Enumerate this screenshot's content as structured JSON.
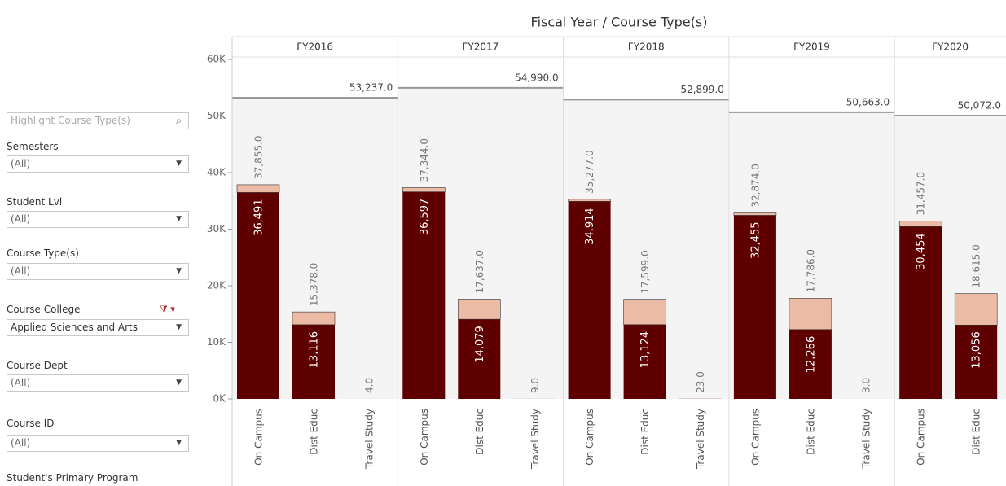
{
  "sidebar": {
    "search_placeholder": "Highlight Course Type(s)",
    "filters": [
      {
        "label": "Semesters",
        "value": "(All)"
      },
      {
        "label": "Student Lvl",
        "value": "(All)"
      },
      {
        "label": "Course Type(s)",
        "value": "(All)"
      },
      {
        "label": "Course College",
        "value": "Applied Sciences and Arts"
      },
      {
        "label": "Course Dept",
        "value": "(All)"
      },
      {
        "label": "Course ID",
        "value": "(All)"
      },
      {
        "label": "Student's Primary Program"
      }
    ]
  },
  "chart_data": {
    "type": "bar",
    "title": "Fiscal Year / Course Type(s)",
    "ylim": [
      0,
      60000
    ],
    "yticks": [
      {
        "value": 0,
        "label": "0K"
      },
      {
        "value": 10000,
        "label": "10K"
      },
      {
        "value": 20000,
        "label": "20K"
      },
      {
        "value": 30000,
        "label": "30K"
      },
      {
        "value": 40000,
        "label": "40K"
      },
      {
        "value": 50000,
        "label": "50K"
      },
      {
        "value": 60000,
        "label": "60K"
      }
    ],
    "series_colors": [
      "#5e0000",
      "#ebbba6"
    ],
    "panes": [
      {
        "name": "FY2016",
        "categories": [
          "On Campus",
          "Dist Educ",
          "Travel Study"
        ],
        "series": [
          {
            "values": [
              36491,
              13116,
              4
            ],
            "value_labels": [
              "36,491",
              "13,116",
              null
            ]
          },
          {
            "values": [
              1364,
              2262,
              0
            ]
          }
        ],
        "totals": [
          37855,
          15378,
          4
        ],
        "total_labels": [
          "37,855.0",
          "15,378.0",
          "4.0"
        ],
        "reference": {
          "value": 53237,
          "label": "53,237.0"
        }
      },
      {
        "name": "FY2017",
        "categories": [
          "On Campus",
          "Dist Educ",
          "Travel Study"
        ],
        "series": [
          {
            "values": [
              36597,
              14079,
              9
            ],
            "value_labels": [
              "36,597",
              "14,079",
              null
            ]
          },
          {
            "values": [
              747,
              3558,
              0
            ]
          }
        ],
        "totals": [
          37344,
          17637,
          9
        ],
        "total_labels": [
          "37,344.0",
          "17,637.0",
          "9.0"
        ],
        "reference": {
          "value": 54990,
          "label": "54,990.0"
        }
      },
      {
        "name": "FY2018",
        "categories": [
          "On Campus",
          "Dist Educ",
          "Travel Study"
        ],
        "series": [
          {
            "values": [
              34914,
              13124,
              23
            ],
            "value_labels": [
              "34,914",
              "13,124",
              null
            ]
          },
          {
            "values": [
              363,
              4475,
              0
            ]
          }
        ],
        "totals": [
          35277,
          17599,
          23
        ],
        "total_labels": [
          "35,277.0",
          "17,599.0",
          "23.0"
        ],
        "reference": {
          "value": 52899,
          "label": "52,899.0"
        }
      },
      {
        "name": "FY2019",
        "categories": [
          "On Campus",
          "Dist Educ",
          "Travel Study"
        ],
        "series": [
          {
            "values": [
              32455,
              12266,
              3
            ],
            "value_labels": [
              "32,455",
              "12,266",
              null
            ]
          },
          {
            "values": [
              419,
              5520,
              0
            ]
          }
        ],
        "totals": [
          32874,
          17786,
          3
        ],
        "total_labels": [
          "32,874.0",
          "17,786.0",
          "3.0"
        ],
        "reference": {
          "value": 50663,
          "label": "50,663.0"
        }
      },
      {
        "name": "FY2020",
        "categories": [
          "On Campus",
          "Dist Educ"
        ],
        "series": [
          {
            "values": [
              30454,
              13056
            ],
            "value_labels": [
              "30,454",
              "13,056"
            ]
          },
          {
            "values": [
              1003,
              5559
            ]
          }
        ],
        "totals": [
          31457,
          18615
        ],
        "total_labels": [
          "31,457.0",
          "18,615.0"
        ],
        "reference": {
          "value": 50072,
          "label": "50,072.0"
        }
      }
    ]
  }
}
